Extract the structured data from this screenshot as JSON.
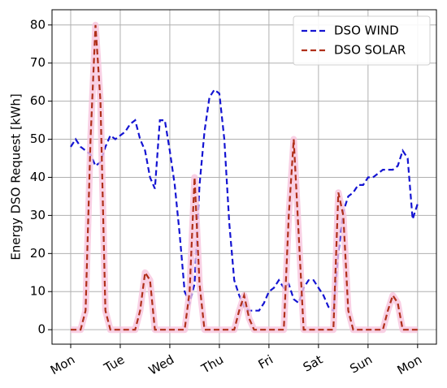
{
  "chart_data": {
    "type": "line",
    "ylabel": "Energy DSO Request [kWh]",
    "x": [
      0,
      0.1,
      0.2,
      0.3,
      0.4,
      0.5,
      0.6,
      0.7,
      0.8,
      0.9,
      1,
      1.1,
      1.2,
      1.3,
      1.4,
      1.5,
      1.6,
      1.7,
      1.8,
      1.9,
      2,
      2.1,
      2.2,
      2.3,
      2.4,
      2.5,
      2.6,
      2.7,
      2.8,
      2.9,
      3,
      3.1,
      3.2,
      3.3,
      3.4,
      3.5,
      3.6,
      3.7,
      3.8,
      3.9,
      4,
      4.1,
      4.2,
      4.3,
      4.4,
      4.5,
      4.6,
      4.7,
      4.8,
      4.9,
      5,
      5.1,
      5.2,
      5.3,
      5.4,
      5.5,
      5.6,
      5.7,
      5.8,
      5.9,
      6,
      6.1,
      6.2,
      6.3,
      6.4,
      6.5,
      6.6,
      6.7,
      6.8,
      6.9,
      7
    ],
    "series": [
      {
        "name": "DSO WIND",
        "color": "#1414d2",
        "values": [
          48,
          50,
          48,
          47,
          46,
          43,
          44,
          48,
          51,
          50,
          51,
          52,
          54,
          55,
          50,
          47,
          40,
          37,
          55,
          55,
          47,
          38,
          25,
          10,
          7,
          12,
          38,
          52,
          61,
          63,
          62,
          50,
          28,
          13,
          9,
          6,
          5,
          5,
          5,
          7,
          10,
          11,
          13,
          11,
          12,
          8,
          7,
          11,
          13,
          13,
          11,
          9,
          6,
          5,
          20,
          31,
          35,
          36,
          38,
          38,
          40,
          40,
          41,
          42,
          42,
          42,
          43,
          47,
          45,
          29,
          33
        ]
      },
      {
        "name": "DSO SOLAR",
        "color": "#b0301a",
        "values": [
          0,
          0,
          0,
          5,
          50,
          80,
          60,
          5,
          0,
          0,
          0,
          0,
          0,
          0,
          5,
          15,
          13,
          0,
          0,
          0,
          0,
          0,
          0,
          0,
          10,
          40,
          12,
          0,
          0,
          0,
          0,
          0,
          0,
          0,
          5,
          9,
          3,
          0,
          0,
          0,
          0,
          0,
          0,
          0,
          30,
          50,
          25,
          0,
          0,
          0,
          0,
          0,
          0,
          0,
          36,
          30,
          5,
          0,
          0,
          0,
          0,
          0,
          0,
          0,
          5,
          9,
          7,
          0,
          0,
          0,
          0
        ]
      }
    ],
    "xlim": [
      -0.377,
      7.38
    ],
    "xticks": [
      {
        "value": 0,
        "label": "Mon"
      },
      {
        "value": 1,
        "label": "Tue"
      },
      {
        "value": 2,
        "label": "Wed"
      },
      {
        "value": 3,
        "label": "Thu"
      },
      {
        "value": 4,
        "label": "Fri"
      },
      {
        "value": 5,
        "label": "Sat"
      },
      {
        "value": 6,
        "label": "Sun"
      },
      {
        "value": 7,
        "label": "Mon"
      }
    ],
    "ylim": [
      -3.8,
      84
    ],
    "yticks": [
      0,
      10,
      20,
      30,
      40,
      50,
      60,
      70,
      80
    ],
    "grid": true,
    "legend": "upper right"
  }
}
